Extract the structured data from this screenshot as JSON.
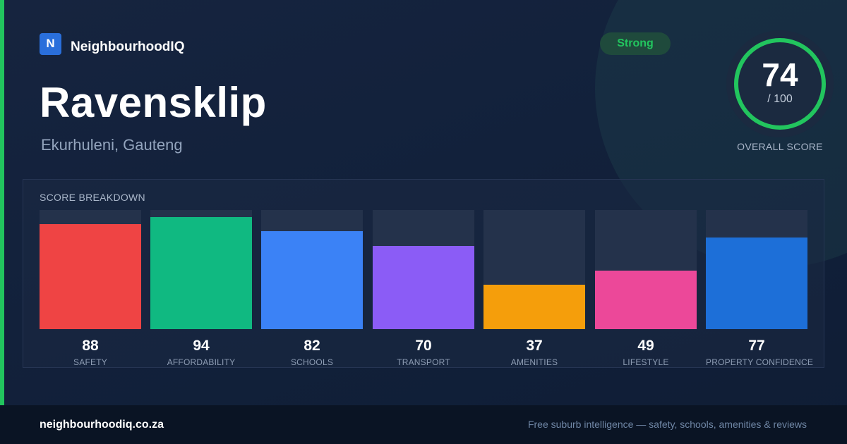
{
  "brand": {
    "logo_letter": "N",
    "name": "NeighbourhoodIQ"
  },
  "suburb": {
    "name": "Ravensklip",
    "location": "Ekurhuleni, Gauteng"
  },
  "badge": {
    "label": "Strong",
    "color": "#22c55e"
  },
  "overall": {
    "score": "74",
    "out_of": "/ 100",
    "label": "OVERALL SCORE",
    "value": 74,
    "max": 100,
    "ring_color": "#22c55e"
  },
  "breakdown": {
    "title": "SCORE BREAKDOWN",
    "items": [
      {
        "label": "SAFETY",
        "value": 88,
        "display": "88",
        "color": "#ef4444"
      },
      {
        "label": "AFFORDABILITY",
        "value": 94,
        "display": "94",
        "color": "#10b981"
      },
      {
        "label": "SCHOOLS",
        "value": 82,
        "display": "82",
        "color": "#3b82f6"
      },
      {
        "label": "TRANSPORT",
        "value": 70,
        "display": "70",
        "color": "#8b5cf6"
      },
      {
        "label": "AMENITIES",
        "value": 37,
        "display": "37",
        "color": "#f59e0b"
      },
      {
        "label": "LIFESTYLE",
        "value": 49,
        "display": "49",
        "color": "#ec4899"
      },
      {
        "label": "PROPERTY CONFIDENCE",
        "value": 77,
        "display": "77",
        "color": "#1d6fd8"
      }
    ]
  },
  "footer": {
    "url": "neighbourhoodiq.co.za",
    "tagline": "Free suburb intelligence — safety, schools, amenities & reviews"
  }
}
